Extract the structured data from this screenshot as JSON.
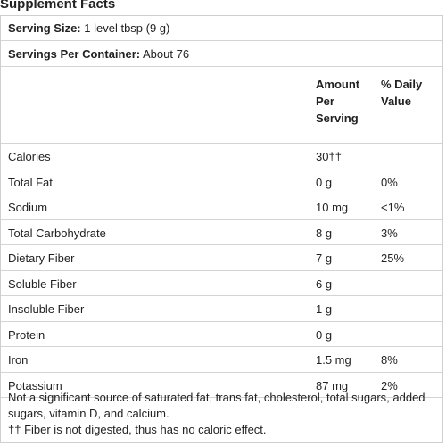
{
  "title": "Supplement Facts",
  "serving_size": {
    "label": "Serving Size:",
    "value": "1 level tbsp (9 g)"
  },
  "servings_per_container": {
    "label": "Servings Per Container:",
    "value": "About 76"
  },
  "columns": {
    "amount_line1": "Amount",
    "amount_line2": "Per",
    "amount_line3": "Serving",
    "dv_line1": "% Daily",
    "dv_line2": "Value"
  },
  "rows": [
    {
      "nutrient": "Calories",
      "amount": "30††",
      "dv": ""
    },
    {
      "nutrient": "Total Fat",
      "amount": "0 g",
      "dv": "0%"
    },
    {
      "nutrient": "Sodium",
      "amount": "10 mg",
      "dv": "<1%"
    },
    {
      "nutrient": "Total Carbohydrate",
      "amount": "8 g",
      "dv": "3%"
    },
    {
      "nutrient": "Dietary Fiber",
      "amount": "7 g",
      "dv": "25%"
    },
    {
      "nutrient": "Soluble Fiber",
      "amount": "6 g",
      "dv": ""
    },
    {
      "nutrient": "Insoluble Fiber",
      "amount": "1 g",
      "dv": ""
    },
    {
      "nutrient": "Protein",
      "amount": "0 g",
      "dv": ""
    },
    {
      "nutrient": "Iron",
      "amount": "1.5 mg",
      "dv": "8%"
    },
    {
      "nutrient": "Potassium",
      "amount": "87 mg",
      "dv": "2%"
    }
  ],
  "footnotes": {
    "note1": "Not a significant source of saturated fat, trans fat, cholesterol, total sugars, added sugars, vitamin D, and calcium.",
    "note2": "†† Fiber is not digested, thus has no caloric effect."
  }
}
